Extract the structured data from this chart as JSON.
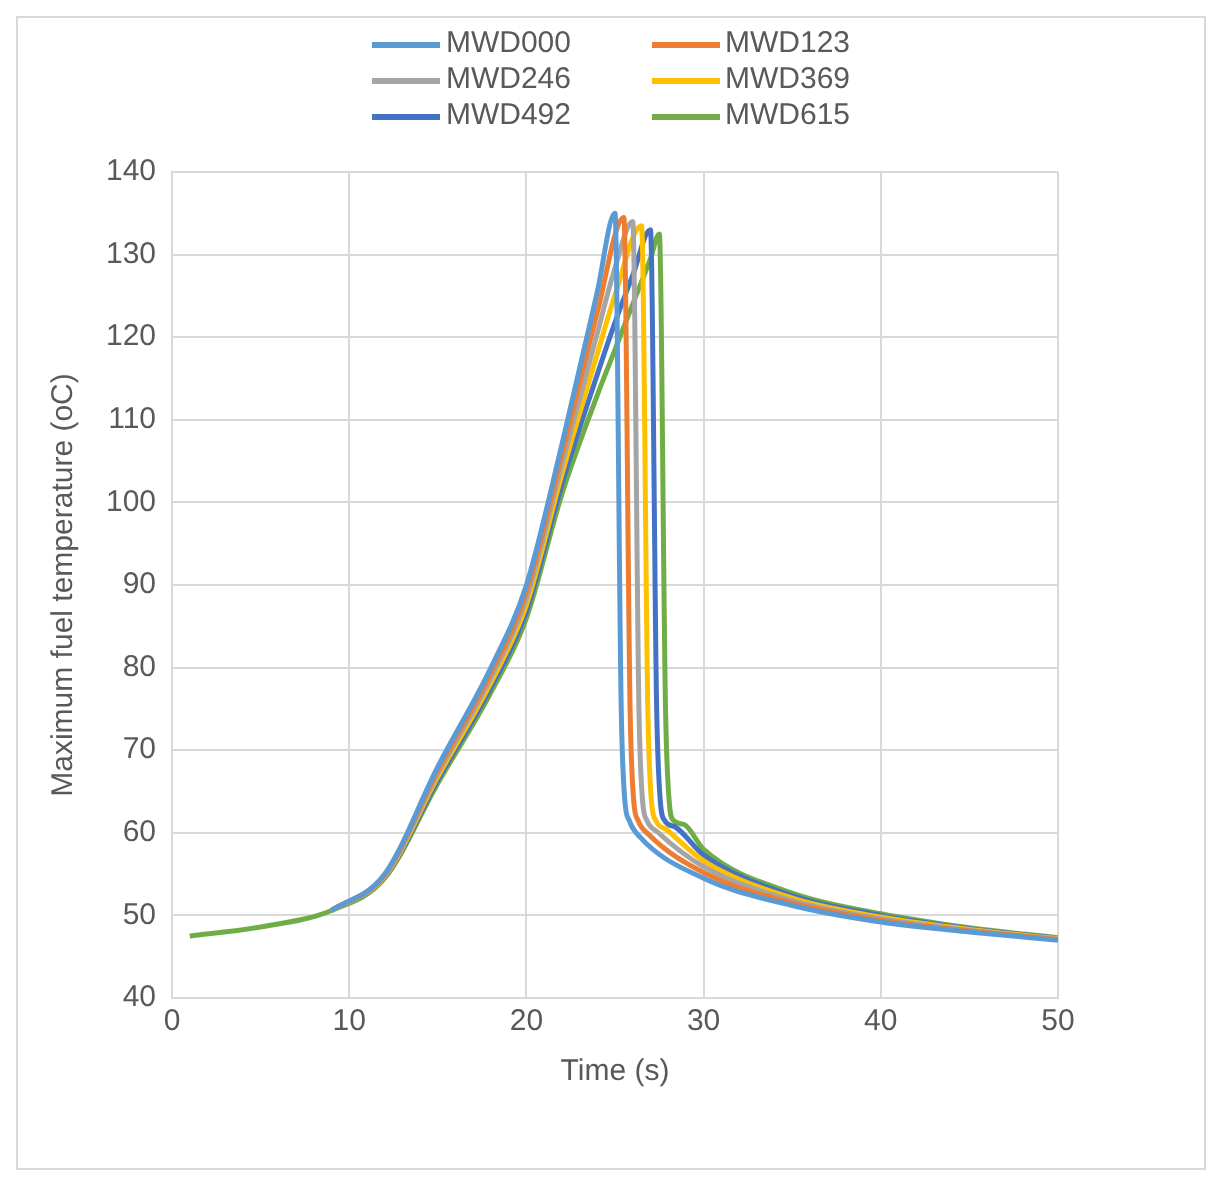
{
  "chart_data": {
    "type": "line",
    "xlabel": "Time (s)",
    "ylabel": "Maximum fuel temperature (oC)",
    "xlim": [
      0,
      50
    ],
    "xticks": [
      0,
      10,
      20,
      30,
      40,
      50
    ],
    "ylim": [
      40,
      140
    ],
    "yticks": [
      40,
      50,
      60,
      70,
      80,
      90,
      100,
      110,
      120,
      130,
      140
    ],
    "grid": true,
    "legend": "top",
    "marker": "none",
    "line_style": "solid",
    "series": [
      {
        "name": "MWD000",
        "color": "#5b9bd5",
        "x": [
          9,
          12,
          15,
          18,
          20,
          22,
          24,
          25,
          25.35,
          25.55,
          25.8,
          26.4,
          30,
          35,
          40,
          45,
          50
        ],
        "values": [
          50.6,
          55,
          68,
          80,
          90,
          107,
          125.5,
          135,
          75,
          64,
          61.5,
          59.5,
          54.5,
          51.2,
          49.2,
          48,
          47
        ]
      },
      {
        "name": "MWD123",
        "color": "#ed7d31",
        "x": [
          9,
          12,
          15,
          18,
          20,
          22,
          24,
          25.5,
          25.85,
          26.05,
          26.3,
          26.9,
          30,
          35,
          40,
          45,
          50
        ],
        "values": [
          50.6,
          54.9,
          67.6,
          79.4,
          89.2,
          105.8,
          123,
          134.5,
          75,
          64,
          61.5,
          59.8,
          55.2,
          51.5,
          49.4,
          48.1,
          47.1
        ]
      },
      {
        "name": "MWD246",
        "color": "#a5a5a5",
        "x": [
          9,
          12,
          15,
          18,
          20,
          22,
          24,
          25,
          26,
          26.35,
          26.55,
          26.8,
          27.4,
          30,
          35,
          40,
          45,
          50
        ],
        "values": [
          50.6,
          54.8,
          67.2,
          78.8,
          88.4,
          104.6,
          120.5,
          128.4,
          134,
          75,
          64,
          61.5,
          60.1,
          55.9,
          51.8,
          49.6,
          48.2,
          47.1
        ]
      },
      {
        "name": "MWD369",
        "color": "#ffc000",
        "x": [
          9,
          12,
          15,
          18,
          20,
          22,
          24,
          25,
          26.5,
          26.85,
          27.05,
          27.3,
          27.9,
          30,
          35,
          40,
          45,
          50
        ],
        "values": [
          50.6,
          54.7,
          66.8,
          78.2,
          87.6,
          103.4,
          118,
          125.1,
          133.5,
          75,
          64,
          61.5,
          60.4,
          56.6,
          52.1,
          49.8,
          48.3,
          47.2
        ]
      },
      {
        "name": "MWD492",
        "color": "#4472c4",
        "x": [
          9,
          12,
          15,
          18,
          20,
          22,
          24,
          25,
          26,
          27,
          27.35,
          27.55,
          27.8,
          28.4,
          30,
          35,
          40,
          45,
          50
        ],
        "values": [
          50.6,
          54.6,
          66.4,
          77.6,
          86.8,
          102.2,
          115.5,
          121.8,
          127.5,
          133,
          75,
          64,
          61.5,
          60.7,
          57.3,
          52.4,
          50,
          48.4,
          47.2
        ]
      },
      {
        "name": "MWD615",
        "color": "#70ad47",
        "x": [
          1,
          5,
          9,
          12,
          15,
          18,
          20,
          22,
          24,
          25,
          26,
          27,
          27.5,
          27.85,
          28.05,
          28.3,
          28.9,
          30,
          35,
          40,
          45,
          50
        ],
        "values": [
          47.5,
          48.6,
          50.6,
          54.5,
          66,
          77,
          86,
          101,
          113,
          118.5,
          124,
          129.5,
          132.5,
          75,
          64,
          61.5,
          61,
          58,
          52.7,
          50.2,
          48.5,
          47.3
        ]
      }
    ]
  }
}
